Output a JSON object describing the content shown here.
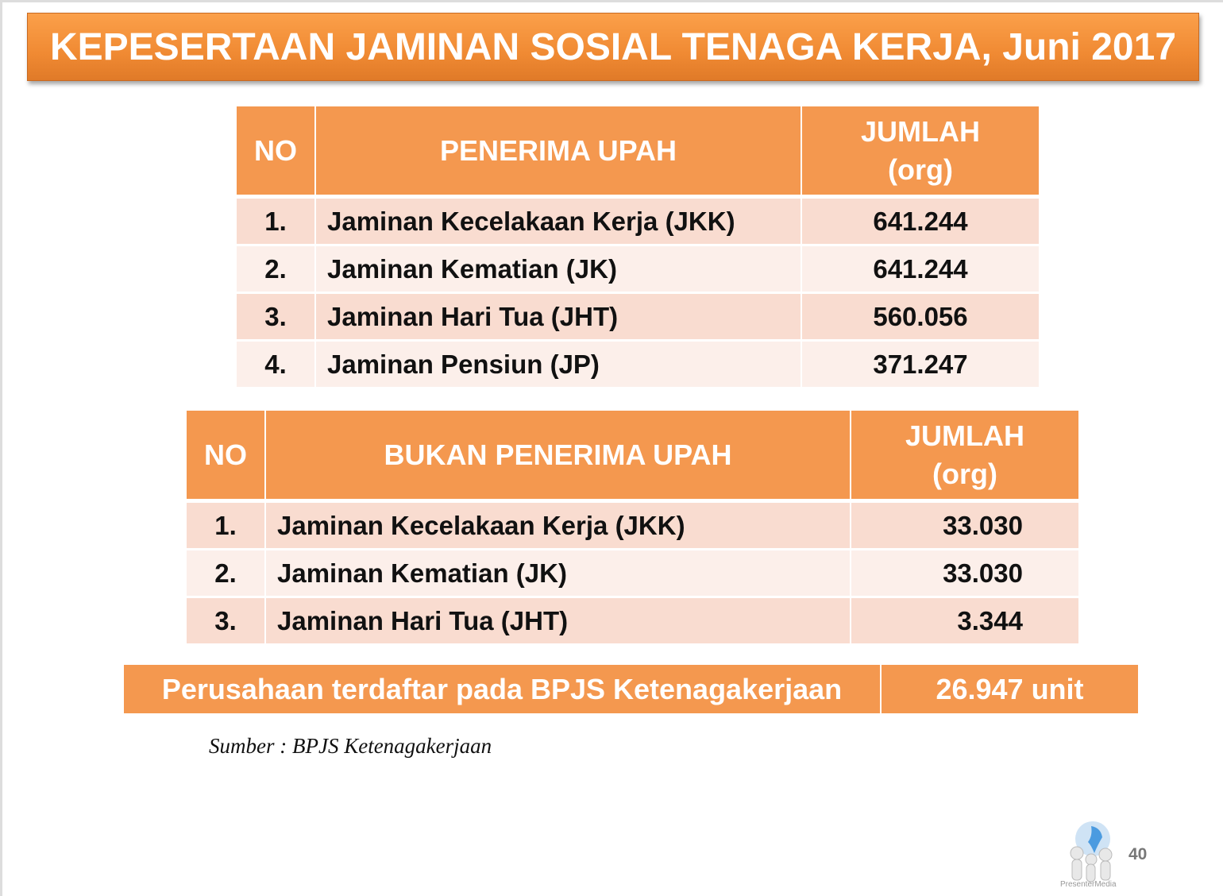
{
  "title": "KEPESERTAAN JAMINAN SOSIAL TENAGA KERJA, Juni 2017",
  "table1": {
    "headers": [
      "NO",
      "PENERIMA UPAH",
      "JUMLAH (org)"
    ],
    "rows": [
      [
        "1.",
        "Jaminan Kecelakaan Kerja (JKK)",
        "641.244"
      ],
      [
        "2.",
        "Jaminan Kematian (JK)",
        "641.244"
      ],
      [
        "3.",
        "Jaminan Hari Tua (JHT)",
        "560.056"
      ],
      [
        "4.",
        "Jaminan Pensiun (JP)",
        "371.247"
      ]
    ]
  },
  "table2": {
    "headers": [
      "NO",
      "BUKAN PENERIMA UPAH",
      "JUMLAH (org)"
    ],
    "rows": [
      [
        "1.",
        "Jaminan Kecelakaan Kerja (JKK)",
        "33.030"
      ],
      [
        "2.",
        "Jaminan Kematian (JK)",
        "33.030"
      ],
      [
        "3.",
        "Jaminan Hari Tua (JHT)",
        "3.344"
      ]
    ]
  },
  "summary": {
    "label": "Perusahaan terdaftar pada BPJS Ketenagakerjaan",
    "value": "26.947 unit"
  },
  "source": "Sumber : BPJS Ketenagakerjaan",
  "logo_text": "PresenterMedia",
  "page_number": "40"
}
